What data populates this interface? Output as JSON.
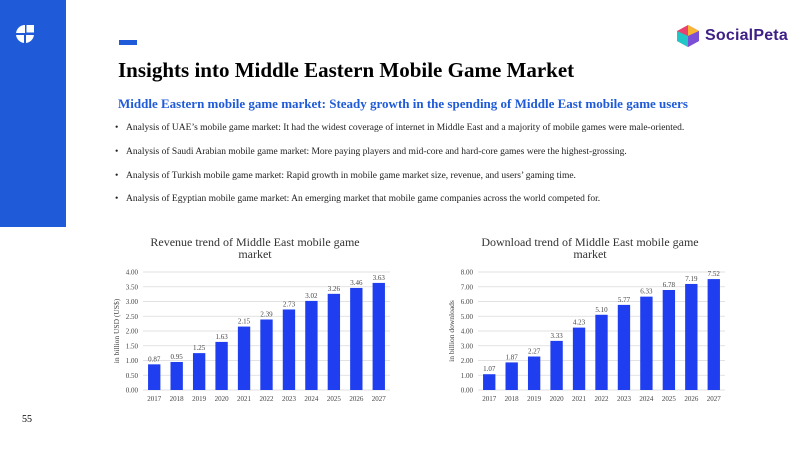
{
  "page": {
    "title": "Insights into Middle Eastern Mobile Game Market",
    "subtitle": "Middle Eastern mobile game market: Steady growth in the spending of Middle East mobile game users",
    "page_number": "55",
    "brand": "SocialPeta",
    "accent_color": "#1f5bd8",
    "bar_color": "#1f3ef0"
  },
  "bullets": [
    "Analysis of UAE’s mobile game market: It had the widest coverage of internet in Middle East and a majority of mobile games were male-oriented.",
    "Analysis of Saudi Arabian mobile game market: More paying players and mid-core and hard-core games were the highest-grossing.",
    "Analysis of Turkish mobile game market: Rapid growth in mobile game market size, revenue, and users’ gaming time.",
    "Analysis of Egyptian mobile game market: An emerging market that mobile game companies across the world competed for."
  ],
  "chart_data": [
    {
      "type": "bar",
      "title_line1": "Revenue trend of Middle East mobile game",
      "title_line2": "market",
      "ylabel": "in billion USD (US$)",
      "categories": [
        "2017",
        "2018",
        "2019",
        "2020",
        "2021",
        "2022",
        "2023",
        "2024",
        "2025",
        "2026",
        "2027"
      ],
      "values": [
        0.87,
        0.95,
        1.25,
        1.63,
        2.15,
        2.39,
        2.73,
        3.02,
        3.26,
        3.46,
        3.63
      ],
      "value_labels": [
        "0.87",
        "0.95",
        "1.25",
        "1.63",
        "2.15",
        "2.39",
        "2.73",
        "3.02",
        "3.26",
        "3.46",
        "3.63"
      ],
      "ylim": [
        0,
        4
      ],
      "yticks": [
        "0.00",
        "0.50",
        "1.00",
        "1.50",
        "2.00",
        "2.50",
        "3.00",
        "3.50",
        "4.00"
      ],
      "grid": true
    },
    {
      "type": "bar",
      "title_line1": "Download trend of Middle East mobile game",
      "title_line2": "market",
      "ylabel": "in billion downloads",
      "categories": [
        "2017",
        "2018",
        "2019",
        "2020",
        "2021",
        "2022",
        "2023",
        "2024",
        "2025",
        "2026",
        "2027"
      ],
      "values": [
        1.07,
        1.87,
        2.27,
        3.33,
        4.23,
        5.1,
        5.77,
        6.33,
        6.78,
        7.19,
        7.52
      ],
      "value_labels": [
        "1.07",
        "1.87",
        "2.27",
        "3.33",
        "4.23",
        "5.10",
        "5.77",
        "6.33",
        "6.78",
        "7.19",
        "7.52"
      ],
      "ylim": [
        0,
        8
      ],
      "yticks": [
        "0.00",
        "1.00",
        "2.00",
        "3.00",
        "4.00",
        "5.00",
        "6.00",
        "7.00",
        "8.00"
      ],
      "grid": true
    }
  ]
}
